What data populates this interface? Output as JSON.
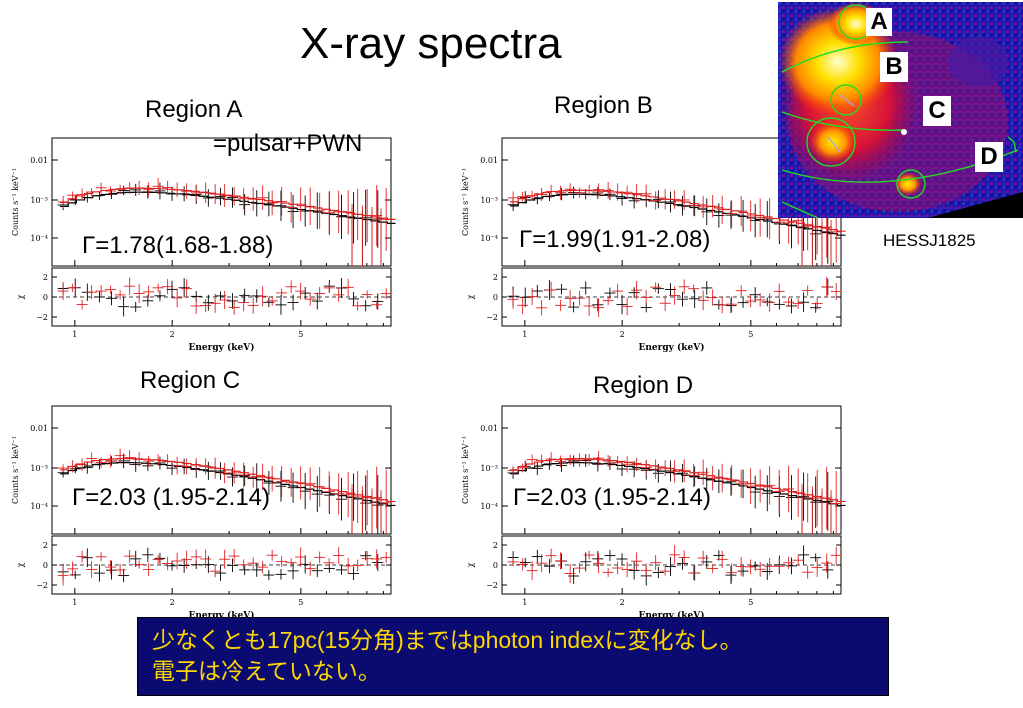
{
  "title": "X-ray spectra",
  "map": {
    "caption": "HESSJ1825",
    "region_letters": [
      "A",
      "B",
      "C",
      "D"
    ]
  },
  "note": {
    "line1": "少なくとも17pc(15分角)まではphoton indexに変化なし。",
    "line2": "電子は冷えていない。"
  },
  "panels": [
    {
      "label": "Region A",
      "sub": "=pulsar+PWN",
      "gamma": "Γ=1.78(1.68-1.88)"
    },
    {
      "label": "Region B",
      "sub": "",
      "gamma": "Γ=1.99(1.91-2.08)"
    },
    {
      "label": "Region C",
      "sub": "",
      "gamma": "Γ=2.03 (1.95-2.14)"
    },
    {
      "label": "Region D",
      "sub": "",
      "gamma": "Γ=2.03 (1.95-2.14)"
    }
  ],
  "chart_data": [
    {
      "type": "line",
      "name": "Region A",
      "xlabel": "Energy (keV)",
      "ylabel_top": "Counts s⁻¹ keV⁻¹",
      "ylabel_bottom": "χ",
      "x_ticks": [
        "1",
        "2",
        "5"
      ],
      "y_ticks_top": [
        "0.01",
        "10⁻³",
        "10⁻⁴"
      ],
      "y_ticks_bottom": [
        "2",
        "0",
        "−2"
      ],
      "xlim": [
        0.85,
        9.5
      ],
      "gamma": 1.78,
      "gamma_range": [
        1.68,
        1.88
      ],
      "series_colors": [
        "#000000",
        "#e02020"
      ]
    },
    {
      "type": "line",
      "name": "Region B",
      "xlabel": "Energy (keV)",
      "ylabel_top": "Counts s⁻¹ keV⁻¹",
      "ylabel_bottom": "χ",
      "x_ticks": [
        "1",
        "2",
        "5"
      ],
      "y_ticks_top": [
        "0.01",
        "10⁻³",
        "10⁻⁴"
      ],
      "y_ticks_bottom": [
        "2",
        "0",
        "−2"
      ],
      "xlim": [
        0.85,
        9.5
      ],
      "gamma": 1.99,
      "gamma_range": [
        1.91,
        2.08
      ],
      "series_colors": [
        "#000000",
        "#e02020"
      ]
    },
    {
      "type": "line",
      "name": "Region C",
      "xlabel": "Energy (keV)",
      "ylabel_top": "Counts s⁻¹ keV⁻¹",
      "ylabel_bottom": "χ",
      "x_ticks": [
        "1",
        "2",
        "5"
      ],
      "y_ticks_top": [
        "0.01",
        "10⁻³",
        "10⁻⁴"
      ],
      "y_ticks_bottom": [
        "2",
        "0",
        "−2"
      ],
      "xlim": [
        0.85,
        9.5
      ],
      "gamma": 2.03,
      "gamma_range": [
        1.95,
        2.14
      ],
      "series_colors": [
        "#000000",
        "#e02020"
      ]
    },
    {
      "type": "line",
      "name": "Region D",
      "xlabel": "Energy (keV)",
      "ylabel_top": "Counts s⁻¹ keV⁻¹",
      "ylabel_bottom": "χ",
      "x_ticks": [
        "1",
        "2",
        "5"
      ],
      "y_ticks_top": [
        "0.01",
        "10⁻³",
        "10⁻⁴"
      ],
      "y_ticks_bottom": [
        "2",
        "0",
        "−2"
      ],
      "xlim": [
        0.85,
        9.5
      ],
      "gamma": 2.03,
      "gamma_range": [
        1.95,
        2.14
      ],
      "series_colors": [
        "#000000",
        "#e02020"
      ]
    }
  ]
}
